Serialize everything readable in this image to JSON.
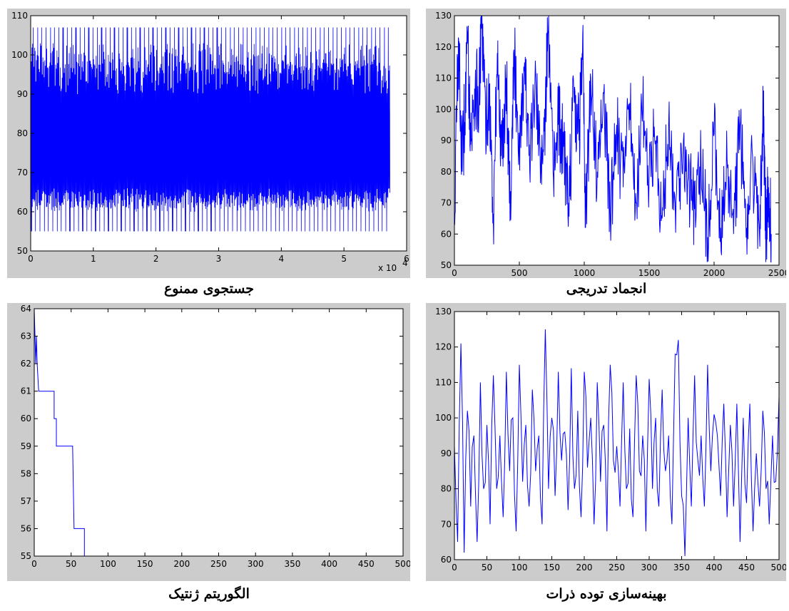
{
  "charts": [
    {
      "id": "tabu",
      "caption": "جستجوی ممنوع",
      "chart_data": {
        "type": "line",
        "title": "",
        "xlabel": "",
        "ylabel": "",
        "xlim": [
          0,
          60000
        ],
        "ylim": [
          50,
          110
        ],
        "xticks": [
          0,
          1,
          2,
          3,
          4,
          5,
          6
        ],
        "yticks": [
          50,
          60,
          70,
          80,
          90,
          100,
          110
        ],
        "x_exponent": "x 10",
        "x_exponent_power": "4",
        "grid": false,
        "series": [
          {
            "color": "#0000ff",
            "x_range": [
              0,
              57300
            ],
            "y_envelope": {
              "min": 55,
              "max": 107,
              "dense_band": [
                61,
                95
              ]
            },
            "sample_points": [
              [
                0,
                97
              ],
              [
                1000,
                66
              ],
              [
                2500,
                107
              ],
              [
                5000,
                55
              ],
              [
                10000,
                107
              ],
              [
                15000,
                60
              ],
              [
                20000,
                102
              ],
              [
                30000,
                55
              ],
              [
                40000,
                107
              ],
              [
                50000,
                61
              ],
              [
                55000,
                107
              ],
              [
                57300,
                86
              ]
            ]
          }
        ]
      }
    },
    {
      "id": "sa",
      "caption": "انجماد تدریجی",
      "chart_data": {
        "type": "line",
        "title": "",
        "xlabel": "",
        "ylabel": "",
        "xlim": [
          0,
          2500
        ],
        "ylim": [
          50,
          130
        ],
        "xticks": [
          0,
          500,
          1000,
          1500,
          2000,
          2500
        ],
        "yticks": [
          50,
          60,
          70,
          80,
          90,
          100,
          110,
          120,
          130
        ],
        "grid": false,
        "series": [
          {
            "color": "#0000ff",
            "points": [
              [
                0,
                65
              ],
              [
                30,
                123
              ],
              [
                60,
                80
              ],
              [
                100,
                121
              ],
              [
                130,
                90
              ],
              [
                160,
                108
              ],
              [
                190,
                102
              ],
              [
                210,
                130
              ],
              [
                240,
                95
              ],
              [
                270,
                105
              ],
              [
                300,
                62
              ],
              [
                330,
                118
              ],
              [
                360,
                85
              ],
              [
                400,
                110
              ],
              [
                430,
                70
              ],
              [
                460,
                116
              ],
              [
                500,
                90
              ],
              [
                540,
                115
              ],
              [
                580,
                80
              ],
              [
                620,
                108
              ],
              [
                660,
                85
              ],
              [
                700,
                100
              ],
              [
                720,
                124
              ],
              [
                760,
                80
              ],
              [
                800,
                95
              ],
              [
                840,
                88
              ],
              [
                880,
                70
              ],
              [
                920,
                105
              ],
              [
                960,
                90
              ],
              [
                990,
                127
              ],
              [
                1010,
                62
              ],
              [
                1050,
                110
              ],
              [
                1100,
                80
              ],
              [
                1150,
                105
              ],
              [
                1200,
                67
              ],
              [
                1250,
                95
              ],
              [
                1300,
                75
              ],
              [
                1350,
                102
              ],
              [
                1400,
                70
              ],
              [
                1450,
                100
              ],
              [
                1500,
                80
              ],
              [
                1550,
                90
              ],
              [
                1600,
                65
              ],
              [
                1650,
                95
              ],
              [
                1700,
                70
              ],
              [
                1750,
                85
              ],
              [
                1800,
                78
              ],
              [
                1850,
                68
              ],
              [
                1900,
                82
              ],
              [
                1950,
                59
              ],
              [
                2000,
                92
              ],
              [
                2050,
                62
              ],
              [
                2100,
                84
              ],
              [
                2150,
                60
              ],
              [
                2200,
                95
              ],
              [
                2250,
                62
              ],
              [
                2300,
                82
              ],
              [
                2350,
                59
              ],
              [
                2380,
                100
              ],
              [
                2400,
                60
              ],
              [
                2420,
                75
              ],
              [
                2440,
                60
              ]
            ]
          }
        ]
      }
    },
    {
      "id": "ga",
      "caption": "الگوریتم ژنتیک",
      "chart_data": {
        "type": "line",
        "title": "",
        "xlabel": "",
        "ylabel": "",
        "xlim": [
          0,
          500
        ],
        "ylim": [
          55,
          64
        ],
        "xticks": [
          0,
          50,
          100,
          150,
          200,
          250,
          300,
          350,
          400,
          450,
          500
        ],
        "yticks": [
          55,
          56,
          57,
          58,
          59,
          60,
          61,
          62,
          63,
          64
        ],
        "grid": false,
        "series": [
          {
            "color": "#0000ff",
            "step": true,
            "points": [
              [
                0,
                64
              ],
              [
                2,
                62
              ],
              [
                3,
                63
              ],
              [
                4,
                62
              ],
              [
                6,
                61
              ],
              [
                27,
                61
              ],
              [
                27,
                60
              ],
              [
                30,
                60
              ],
              [
                30,
                59
              ],
              [
                52,
                59
              ],
              [
                54,
                56
              ],
              [
                68,
                56
              ],
              [
                68,
                55
              ],
              [
                500,
                55
              ]
            ]
          }
        ]
      }
    },
    {
      "id": "pso",
      "caption": "بهینه‌سازی توده ذرات",
      "chart_data": {
        "type": "line",
        "title": "",
        "xlabel": "",
        "ylabel": "",
        "xlim": [
          0,
          500
        ],
        "ylim": [
          60,
          130
        ],
        "xticks": [
          0,
          50,
          100,
          150,
          200,
          250,
          300,
          350,
          400,
          450,
          500
        ],
        "yticks": [
          60,
          70,
          80,
          90,
          100,
          110,
          120,
          130
        ],
        "grid": false,
        "series": [
          {
            "color": "#0000ff",
            "points": [
              [
                0,
                92
              ],
              [
                5,
                65
              ],
              [
                10,
                121
              ],
              [
                15,
                62
              ],
              [
                20,
                102
              ],
              [
                25,
                75
              ],
              [
                30,
                95
              ],
              [
                35,
                65
              ],
              [
                40,
                110
              ],
              [
                45,
                80
              ],
              [
                50,
                98
              ],
              [
                55,
                70
              ],
              [
                60,
                112
              ],
              [
                65,
                80
              ],
              [
                70,
                95
              ],
              [
                75,
                72
              ],
              [
                80,
                113
              ],
              [
                85,
                85
              ],
              [
                90,
                100
              ],
              [
                95,
                68
              ],
              [
                100,
                115
              ],
              [
                105,
                82
              ],
              [
                110,
                98
              ],
              [
                115,
                75
              ],
              [
                120,
                108
              ],
              [
                125,
                85
              ],
              [
                130,
                95
              ],
              [
                135,
                70
              ],
              [
                140,
                125
              ],
              [
                145,
                80
              ],
              [
                150,
                100
              ],
              [
                155,
                78
              ],
              [
                160,
                113
              ],
              [
                165,
                88
              ],
              [
                170,
                96
              ],
              [
                175,
                74
              ],
              [
                180,
                114
              ],
              [
                185,
                80
              ],
              [
                190,
                102
              ],
              [
                195,
                72
              ],
              [
                200,
                113
              ],
              [
                205,
                86
              ],
              [
                210,
                100
              ],
              [
                215,
                70
              ],
              [
                220,
                110
              ],
              [
                225,
                82
              ],
              [
                230,
                98
              ],
              [
                235,
                68
              ],
              [
                240,
                115
              ],
              [
                245,
                88
              ],
              [
                250,
                92
              ],
              [
                255,
                75
              ],
              [
                260,
                110
              ],
              [
                265,
                80
              ],
              [
                270,
                97
              ],
              [
                275,
                72
              ],
              [
                280,
                112
              ],
              [
                285,
                85
              ],
              [
                290,
                95
              ],
              [
                295,
                68
              ],
              [
                300,
                111
              ],
              [
                305,
                80
              ],
              [
                310,
                100
              ],
              [
                315,
                75
              ],
              [
                320,
                108
              ],
              [
                325,
                85
              ],
              [
                330,
                95
              ],
              [
                335,
                70
              ],
              [
                340,
                118
              ],
              [
                345,
                122
              ],
              [
                350,
                78
              ],
              [
                355,
                60
              ],
              [
                360,
                100
              ],
              [
                365,
                75
              ],
              [
                370,
                112
              ],
              [
                375,
                88
              ],
              [
                380,
                95
              ],
              [
                385,
                75
              ],
              [
                390,
                115
              ],
              [
                395,
                85
              ],
              [
                400,
                101
              ],
              [
                405,
                95
              ],
              [
                410,
                78
              ],
              [
                415,
                104
              ],
              [
                420,
                72
              ],
              [
                425,
                98
              ],
              [
                430,
                75
              ],
              [
                435,
                104
              ],
              [
                440,
                65
              ],
              [
                445,
                100
              ],
              [
                450,
                76
              ],
              [
                455,
                104
              ],
              [
                460,
                68
              ],
              [
                465,
                90
              ],
              [
                470,
                75
              ],
              [
                475,
                102
              ],
              [
                480,
                80
              ],
              [
                485,
                70
              ],
              [
                490,
                95
              ],
              [
                495,
                82
              ],
              [
                500,
                106
              ]
            ]
          }
        ]
      }
    }
  ]
}
